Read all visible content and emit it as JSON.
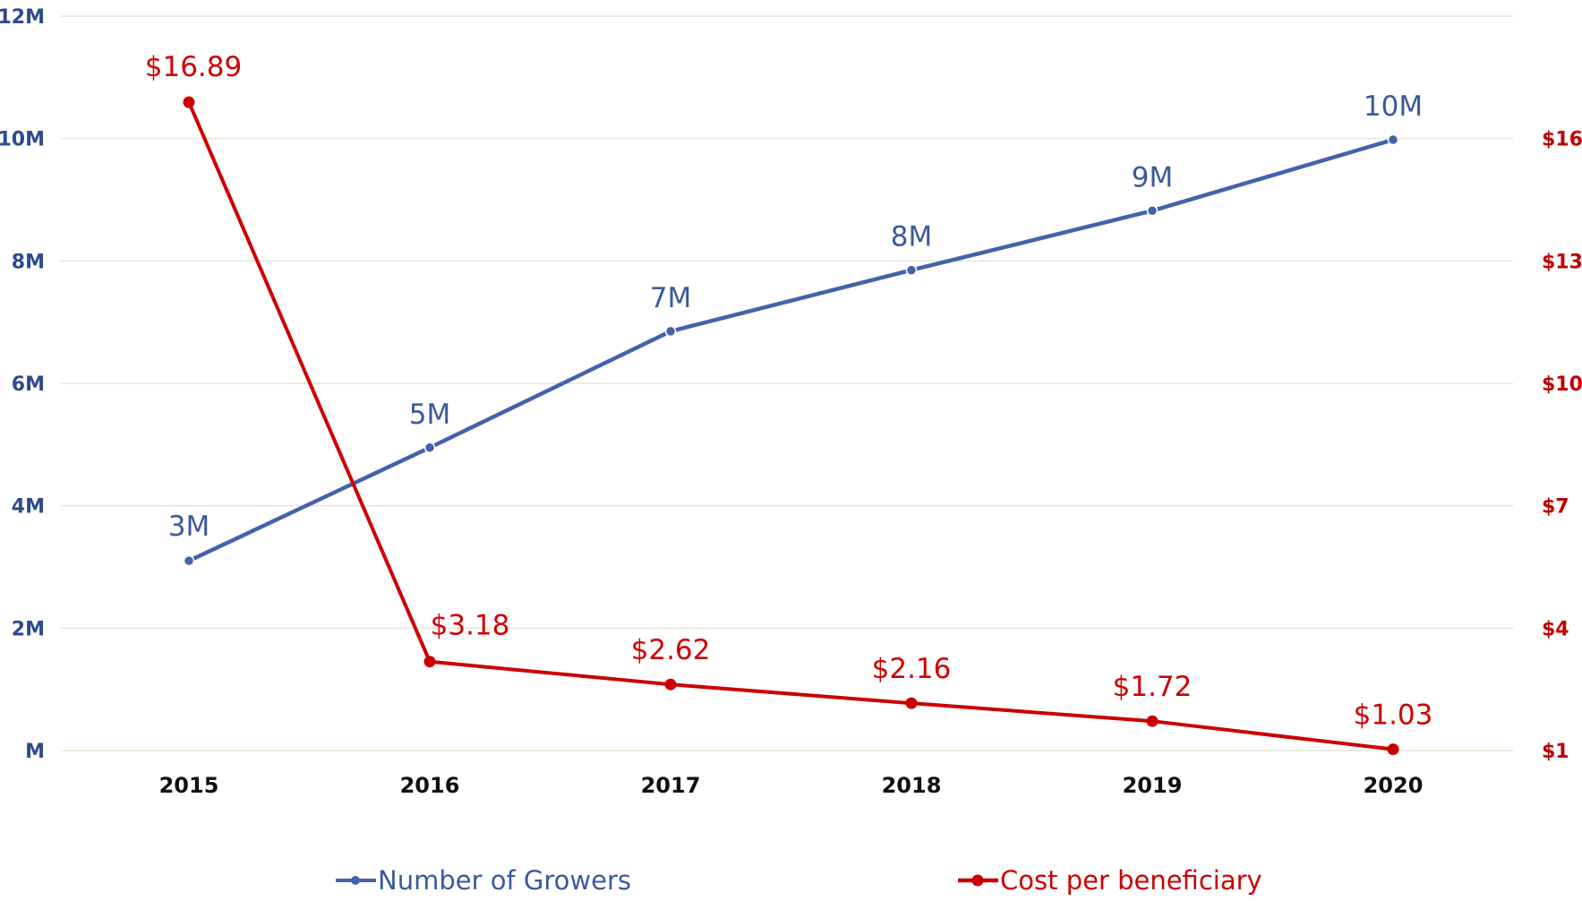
{
  "chart_data": {
    "type": "line",
    "categories": [
      "2015",
      "2016",
      "2017",
      "2018",
      "2019",
      "2020"
    ],
    "series": [
      {
        "name": "Number of Growers",
        "axis": "left",
        "color": "#4263AC",
        "values": [
          3.1,
          4.95,
          6.85,
          7.85,
          8.82,
          9.98
        ],
        "labels": [
          "3M",
          "5M",
          "7M",
          "8M",
          "9M",
          "10M"
        ]
      },
      {
        "name": "Cost per beneficiary",
        "axis": "right",
        "color": "#CC0000",
        "values": [
          16.89,
          3.18,
          2.62,
          2.16,
          1.72,
          1.03
        ],
        "labels": [
          "$16.89",
          "$3.18",
          "$2.62",
          "$2.16",
          "$1.72",
          "$1.03"
        ]
      }
    ],
    "left_axis": {
      "ylim": [
        0,
        12
      ],
      "ticks": [
        0,
        2,
        4,
        6,
        8,
        10,
        12
      ],
      "tick_labels": [
        "M",
        "2M",
        "4M",
        "6M",
        "8M",
        "10M",
        "12M"
      ],
      "color": "#2E4B8F"
    },
    "right_axis": {
      "ylim": [
        1,
        19
      ],
      "ticks": [
        1,
        4,
        7,
        10,
        13,
        16
      ],
      "tick_labels": [
        "$1",
        "$4",
        "$7",
        "$10",
        "$13",
        "$16"
      ],
      "color": "#C00000"
    },
    "legend": {
      "position": "bottom",
      "entries": [
        "Number of Growers",
        "Cost per beneficiary"
      ]
    },
    "grid": true,
    "title": "",
    "xlabel": "",
    "ylabel": ""
  }
}
